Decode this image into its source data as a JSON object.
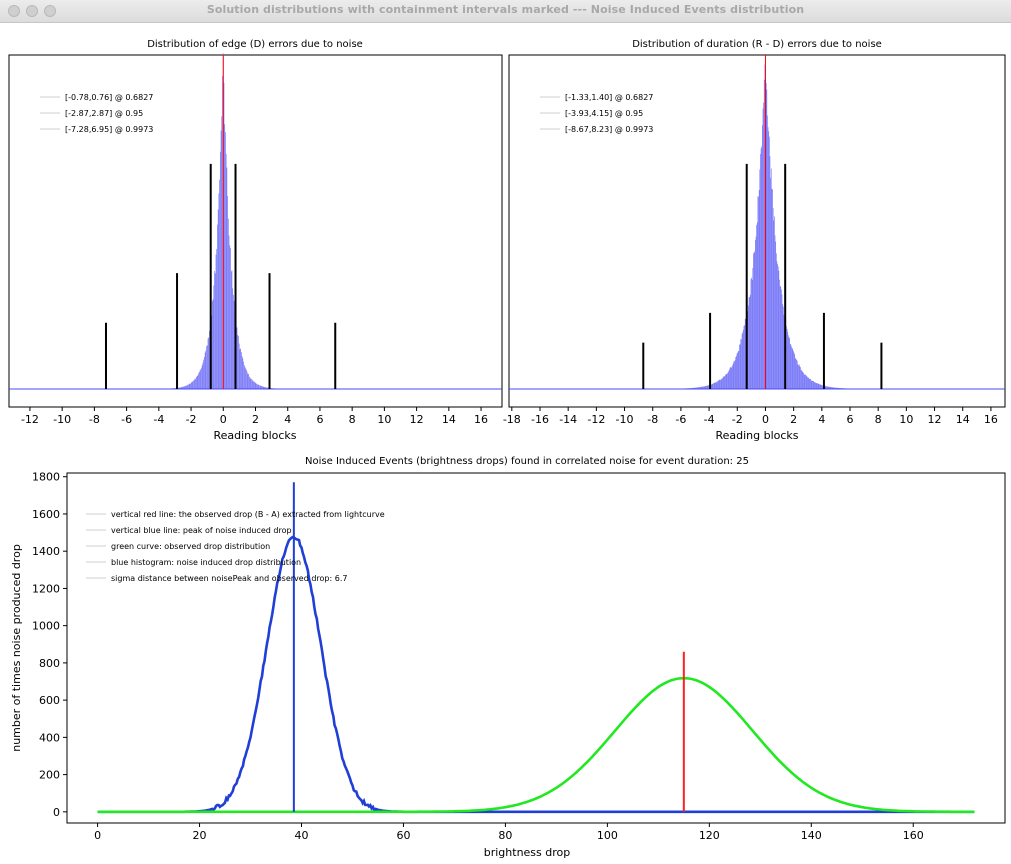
{
  "window": {
    "title": "Solution distributions with containment intervals marked --- Noise Induced Events distribution"
  },
  "chart_data": [
    {
      "type": "histogram",
      "title": "Distribution of edge (D) errors due to noise",
      "xlabel": "Reading blocks",
      "xlim": [
        -13.3,
        17.3
      ],
      "xticks": [
        -12,
        -10,
        -8,
        -6,
        -4,
        -2,
        0,
        2,
        4,
        6,
        8,
        10,
        12,
        14,
        16
      ],
      "center": 0,
      "spread": 0.5,
      "legend": [
        "[-0.78,0.76] @ 0.6827",
        "[-2.87,2.87] @ 0.95",
        "[-7.28,6.95] @ 0.9973"
      ],
      "intervals": [
        {
          "lo": -0.78,
          "hi": 0.76,
          "level": 0.6827,
          "height": 0.68
        },
        {
          "lo": -2.87,
          "hi": 2.87,
          "level": 0.95,
          "height": 0.35
        },
        {
          "lo": -7.28,
          "hi": 6.95,
          "level": 0.9973,
          "height": 0.2
        }
      ],
      "colors": {
        "bars": "#6f6ff7",
        "center_line": "#ff0000",
        "interval": "#000000"
      }
    },
    {
      "type": "histogram",
      "title": "Distribution of duration (R - D) errors due to noise",
      "xlabel": "Reading blocks",
      "xlim": [
        -18.2,
        17.0
      ],
      "xticks": [
        -18,
        -16,
        -14,
        -12,
        -10,
        -8,
        -6,
        -4,
        -2,
        0,
        2,
        4,
        6,
        8,
        10,
        12,
        14,
        16
      ],
      "center": 0,
      "spread": 0.9,
      "legend": [
        "[-1.33,1.40] @ 0.6827",
        "[-3.93,4.15] @ 0.95",
        "[-8.67,8.23] @ 0.9973"
      ],
      "intervals": [
        {
          "lo": -1.33,
          "hi": 1.4,
          "level": 0.6827,
          "height": 0.68
        },
        {
          "lo": -3.93,
          "hi": 4.15,
          "level": 0.95,
          "height": 0.23
        },
        {
          "lo": -8.67,
          "hi": 8.23,
          "level": 0.9973,
          "height": 0.14
        }
      ],
      "colors": {
        "bars": "#6f6ff7",
        "center_line": "#ff0000",
        "interval": "#000000"
      }
    },
    {
      "type": "line",
      "title": "Noise Induced Events (brightness drops) found in correlated noise for event duration: 25",
      "xlabel": "brightness drop",
      "ylabel": "number of times noise produced drop",
      "xlim": [
        -6,
        178
      ],
      "ylim": [
        -60,
        1820
      ],
      "xticks": [
        0,
        20,
        40,
        60,
        80,
        100,
        120,
        140,
        160
      ],
      "yticks": [
        0,
        200,
        400,
        600,
        800,
        1000,
        1200,
        1400,
        1600,
        1800
      ],
      "legend": [
        "vertical red line: the observed drop (B - A) extracted from lightcurve",
        "vertical blue line: peak of noise induced drop",
        "green curve: observed drop distribution",
        "blue histogram: noise induced drop distribution",
        "sigma distance between noisePeak and observed drop: 6.7"
      ],
      "series": [
        {
          "kind": "gaussian",
          "mean": 38.5,
          "sigma": 5.3,
          "peak": 1475,
          "x_range": [
            0,
            172
          ],
          "color": "#1f3fd6"
        },
        {
          "kind": "gaussian",
          "mean": 115,
          "sigma": 13.5,
          "peak": 718,
          "x_range": [
            0,
            172
          ],
          "color": "#22e822"
        }
      ],
      "vlines": [
        {
          "x": 38.5,
          "y_top": 1770,
          "color": "#1f3fd6"
        },
        {
          "x": 115,
          "y_top": 860,
          "color": "#ff2020"
        }
      ],
      "baseline_color": "#9a9a9a"
    }
  ]
}
